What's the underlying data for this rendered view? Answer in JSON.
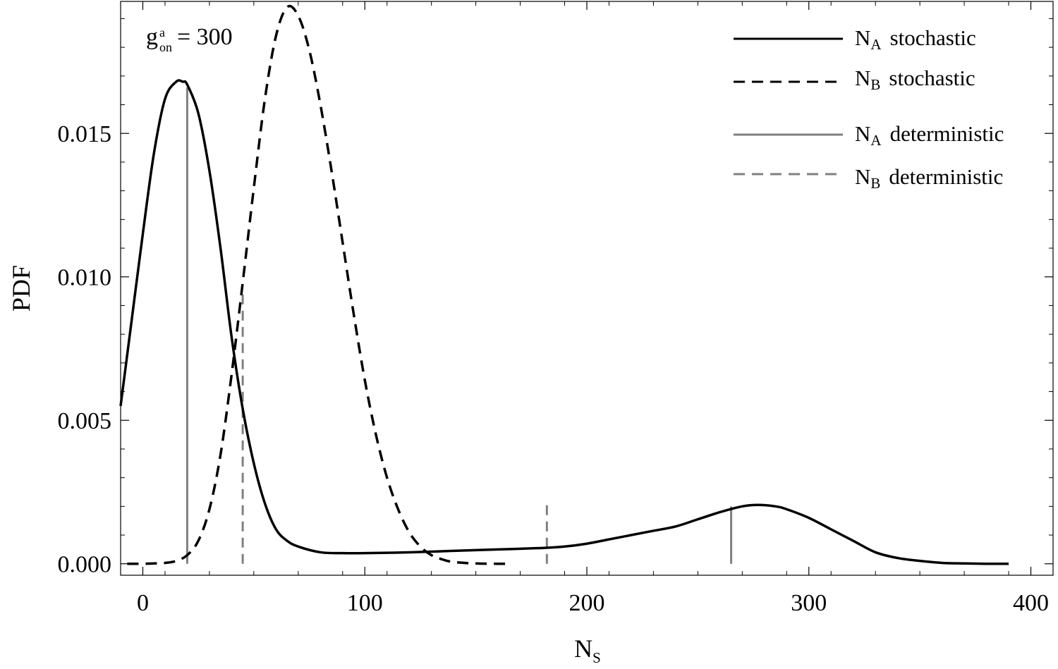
{
  "chart_data": {
    "type": "line",
    "xlabel": {
      "main": "N",
      "sub": "S"
    },
    "ylabel": "PDF",
    "xlim": [
      -10,
      410
    ],
    "ylim": [
      -0.0004,
      0.0196
    ],
    "x_ticks": [
      0,
      100,
      200,
      300,
      400
    ],
    "x_tick_labels": [
      "0",
      "100",
      "200",
      "300",
      "400"
    ],
    "y_ticks": [
      0.0,
      0.005,
      0.01,
      0.015
    ],
    "y_tick_labels": [
      "0.000",
      "0.005",
      "0.010",
      "0.015"
    ],
    "grid": false,
    "legend_placement": "top-right",
    "annotation": {
      "base": "g",
      "sup": "a",
      "sub": "on",
      "text": "= 300"
    },
    "series": [
      {
        "name": "N_A stochastic",
        "legend": {
          "main": "N",
          "sub": "A",
          "text": "stochastic"
        },
        "style": "solid",
        "color": "#000000",
        "x": [
          -10,
          -5,
          0,
          5,
          10,
          15,
          18,
          20,
          25,
          30,
          35,
          40,
          45,
          50,
          55,
          60,
          65,
          70,
          80,
          90,
          100,
          120,
          140,
          160,
          180,
          190,
          200,
          210,
          220,
          230,
          240,
          250,
          260,
          270,
          277,
          285,
          290,
          300,
          310,
          320,
          330,
          340,
          350,
          360,
          370,
          380,
          390
        ],
        "values": [
          0.0055,
          0.0085,
          0.0115,
          0.0143,
          0.0162,
          0.0168,
          0.0168,
          0.0167,
          0.0157,
          0.0137,
          0.011,
          0.0079,
          0.0054,
          0.0035,
          0.0021,
          0.0012,
          0.0008,
          0.0006,
          0.0004,
          0.00037,
          0.00037,
          0.0004,
          0.00045,
          0.0005,
          0.00055,
          0.0006,
          0.0007,
          0.00085,
          0.001,
          0.00115,
          0.0013,
          0.00155,
          0.0018,
          0.002,
          0.00205,
          0.002,
          0.0019,
          0.0016,
          0.0012,
          0.0008,
          0.0004,
          0.0002,
          0.0001,
          3e-05,
          1e-05,
          0.0,
          0.0
        ]
      },
      {
        "name": "N_B stochastic",
        "legend": {
          "main": "N",
          "sub": "B",
          "text": "stochastic"
        },
        "style": "dashed",
        "color": "#000000",
        "x": [
          -7,
          0,
          5,
          10,
          15,
          20,
          25,
          30,
          35,
          40,
          45,
          50,
          55,
          60,
          65,
          70,
          75,
          80,
          85,
          90,
          95,
          100,
          105,
          110,
          115,
          120,
          125,
          130,
          135,
          140,
          150,
          160,
          165
        ],
        "values": [
          0.0,
          0.0,
          1e-05,
          3e-05,
          0.0001,
          0.0003,
          0.0008,
          0.0019,
          0.0038,
          0.0066,
          0.0098,
          0.0131,
          0.0162,
          0.0184,
          0.0194,
          0.0191,
          0.0179,
          0.016,
          0.0137,
          0.0112,
          0.0087,
          0.0064,
          0.0045,
          0.003,
          0.0019,
          0.0011,
          0.0006,
          0.0003,
          0.00015,
          6e-05,
          1e-05,
          0.0,
          0.0
        ]
      }
    ],
    "deterministic_markers": [
      {
        "name": "N_A deterministic",
        "legend": {
          "main": "N",
          "sub": "A",
          "text": "deterministic"
        },
        "style": "solid",
        "color": "#808080",
        "lines": [
          {
            "x": 20,
            "y_top": 0.0166
          },
          {
            "x": 265,
            "y_top": 0.002
          }
        ]
      },
      {
        "name": "N_B deterministic",
        "legend": {
          "main": "N",
          "sub": "B",
          "text": "deterministic"
        },
        "style": "dashed",
        "color": "#808080",
        "lines": [
          {
            "x": 45,
            "y_top": 0.0095
          },
          {
            "x": 182,
            "y_top": 0.0021
          }
        ]
      }
    ]
  }
}
